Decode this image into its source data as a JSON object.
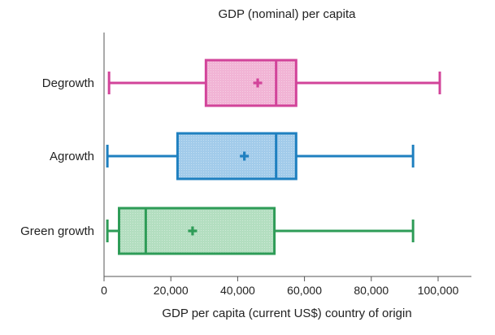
{
  "chart_data": {
    "type": "boxplot",
    "title": "GDP (nominal) per capita",
    "xlabel": "GDP per capita (current US$) country of origin",
    "ylabel": "",
    "xlim": [
      0,
      110000
    ],
    "xticks": [
      0,
      20000,
      40000,
      60000,
      80000,
      100000
    ],
    "xtick_labels": [
      "0",
      "20,000",
      "40,000",
      "60,000",
      "80,000",
      "100,000"
    ],
    "grid": false,
    "legend": "none",
    "series": [
      {
        "name": "Degrowth",
        "color": "#d2449a",
        "fill": "#f1b4d5",
        "min": 1500,
        "q1": 30500,
        "median": 51500,
        "mean": 46000,
        "q3": 57500,
        "max": 100500
      },
      {
        "name": "Agrowth",
        "color": "#1f80c0",
        "fill": "#a2cbea",
        "min": 1000,
        "q1": 22000,
        "median": 51500,
        "mean": 42000,
        "q3": 57500,
        "max": 92500
      },
      {
        "name": "Green growth",
        "color": "#2e9c57",
        "fill": "#b3dec0",
        "min": 1000,
        "q1": 4500,
        "median": 12500,
        "mean": 26500,
        "q3": 51000,
        "max": 92500
      }
    ]
  }
}
